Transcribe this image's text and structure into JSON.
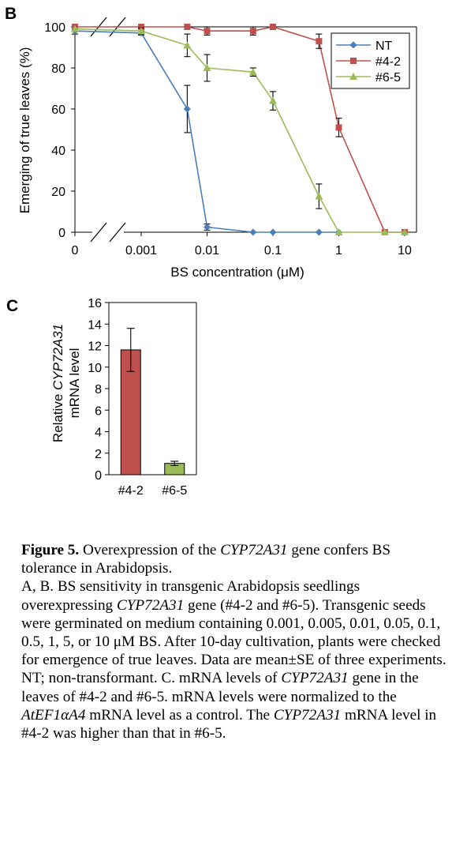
{
  "chart_data": [
    {
      "type": "line",
      "panel_label": "B",
      "ylabel": "Emerging of true leaves (%)",
      "xlabel": "BS concentration (μM)",
      "x_scale": "log with axis break (0 plotted separately)",
      "x": [
        0,
        0.001,
        0.005,
        0.01,
        0.05,
        0.1,
        0.5,
        1,
        5,
        10
      ],
      "x_ticks": [
        "0",
        "0.001",
        "0.01",
        "0.1",
        "1",
        "10"
      ],
      "ylim": [
        0,
        100
      ],
      "y_ticks": [
        "0",
        "20",
        "40",
        "60",
        "80",
        "100"
      ],
      "legend_position": "top-right",
      "series": [
        {
          "name": "NT",
          "color": "#4a7ebb",
          "marker": "diamond",
          "values": [
            98,
            97,
            60,
            2.5,
            0,
            0,
            0,
            0,
            null,
            null
          ],
          "err": [
            1.5,
            1,
            11.5,
            1.5,
            0,
            0,
            0,
            0,
            null,
            null
          ]
        },
        {
          "name": "#4-2",
          "color": "#c0504d",
          "marker": "square",
          "values": [
            100,
            100,
            100,
            98,
            98,
            100,
            93,
            51,
            0,
            0
          ],
          "err": [
            0,
            0,
            0,
            2,
            2,
            0,
            3.5,
            4.5,
            0,
            0
          ]
        },
        {
          "name": "#6-5",
          "color": "#9bbb59",
          "marker": "triangle",
          "values": [
            99,
            98,
            91,
            80,
            78,
            64,
            17.5,
            0,
            0,
            0
          ],
          "err": [
            0,
            1.5,
            5.5,
            6.5,
            2,
            4.5,
            6,
            0,
            0,
            0
          ]
        }
      ]
    },
    {
      "type": "bar",
      "panel_label": "C",
      "ylabel_prefix": "Relative ",
      "ylabel_gene": "CYP72A31",
      "ylabel_line2": "mRNA level",
      "categories": [
        "#4-2",
        "#6-5"
      ],
      "values": [
        11.6,
        1.05
      ],
      "err": [
        2.0,
        0.2
      ],
      "colors": [
        "#c0504d",
        "#9bbb59"
      ],
      "ylim": [
        0,
        16
      ],
      "y_ticks": [
        "0",
        "2",
        "4",
        "6",
        "8",
        "10",
        "12",
        "14",
        "16"
      ]
    }
  ],
  "caption": {
    "fig_label": "Figure 5.",
    "title_a": " Overexpression of the ",
    "title_gene": "CYP72A31",
    "title_b": " gene confers BS tolerance in Arabidopsis.",
    "p2_a": "A, B. BS sensitivity in transgenic Arabidopsis seedlings overexpressing ",
    "p2_gene": "CYP72A31",
    "p2_b": " gene (#4-2 and #6-5). Transgenic seeds were germinated on medium containing 0.001, 0.005, 0.01, 0.05, 0.1, 0.5, 1, 5, or 10 μM BS. After 10-day cultivation, plants were checked for emergence of true leaves. Data are mean±SE of three experiments. NT; non-transformant. C. mRNA levels of ",
    "p2_gene2": "CYP72A31",
    "p2_c": " gene in the leaves of #4-2 and #6-5. mRNA levels were normalized to the ",
    "p2_ctrl": "AtEF1αA4",
    "p2_d": " mRNA level as a control. The ",
    "p2_gene3": "CYP72A31",
    "p2_e": " mRNA level in #4-2 was higher than that in #6-5."
  }
}
